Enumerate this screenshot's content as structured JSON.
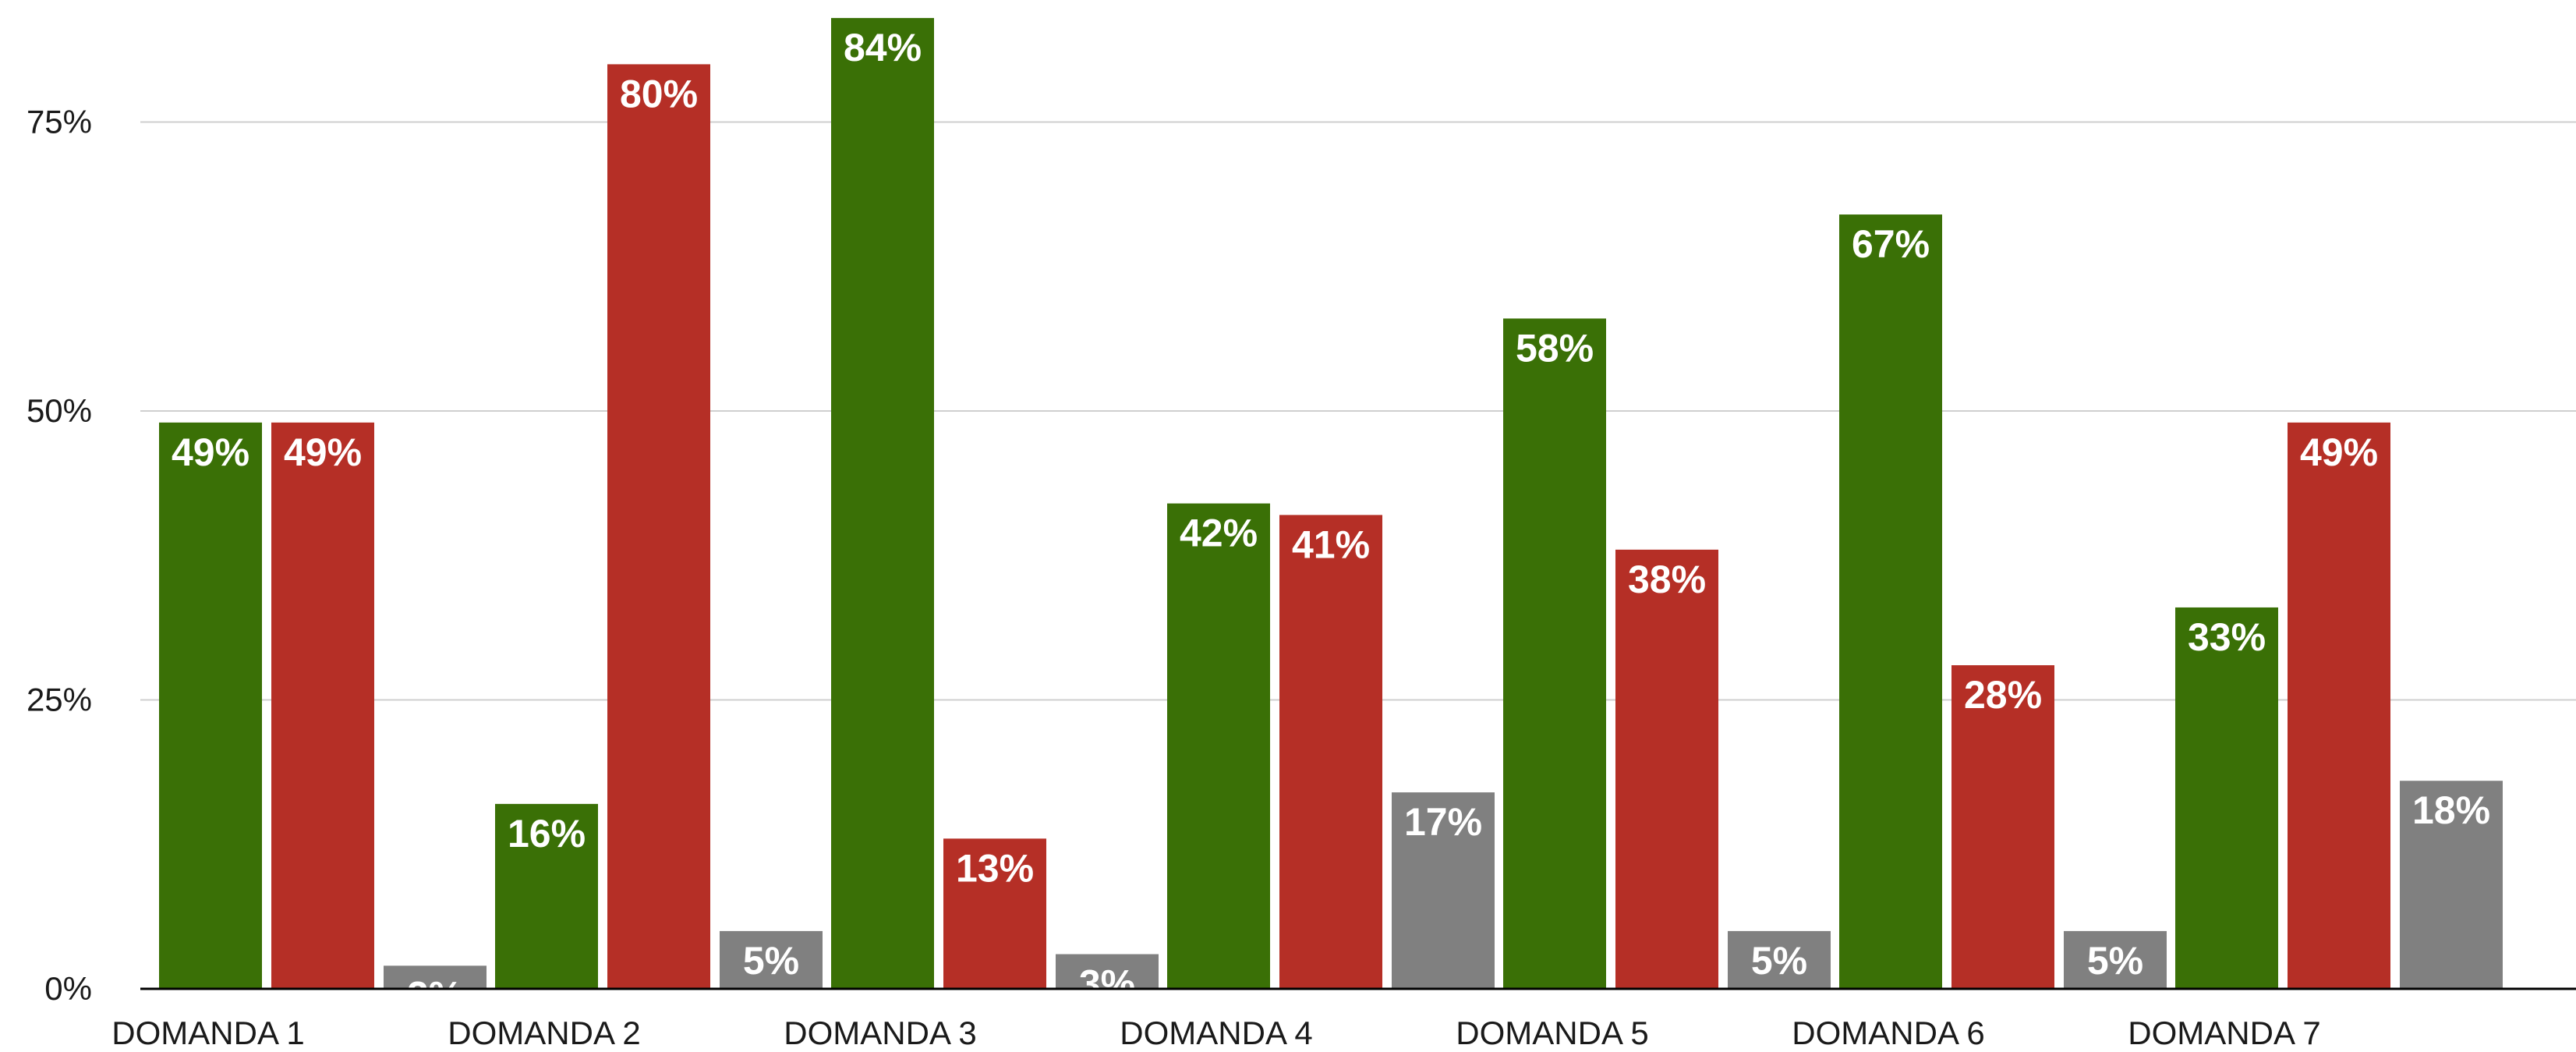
{
  "chart_data": {
    "type": "bar",
    "title": "",
    "xlabel": "",
    "ylabel": "",
    "ylim": [
      0,
      85
    ],
    "yticks": [
      0,
      25,
      50,
      75
    ],
    "ytick_labels": [
      "0%",
      "25%",
      "50%",
      "75%"
    ],
    "grid": true,
    "legend": "none",
    "categories": [
      "DOMANDA 1",
      "DOMANDA 2",
      "DOMANDA 3",
      "DOMANDA 4",
      "DOMANDA 5",
      "DOMANDA 6",
      "DOMANDA 7"
    ],
    "series": [
      {
        "color": "#3a7006",
        "values": [
          49,
          16,
          84,
          42,
          58,
          67,
          33
        ],
        "labels": [
          "49%",
          "16%",
          "84%",
          "42%",
          "58%",
          "67%",
          "33%"
        ]
      },
      {
        "color": "#b52f26",
        "values": [
          49,
          80,
          13,
          41,
          38,
          28,
          49
        ],
        "labels": [
          "49%",
          "80%",
          "13%",
          "41%",
          "38%",
          "28%",
          "49%"
        ]
      },
      {
        "color": "#808080",
        "values": [
          2,
          5,
          3,
          17,
          5,
          5,
          18
        ],
        "labels": [
          "2%",
          "5%",
          "3%",
          "17%",
          "5%",
          "5%",
          "18%"
        ]
      }
    ]
  }
}
